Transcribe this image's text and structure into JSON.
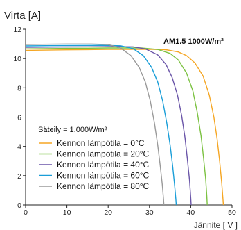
{
  "chart_data": {
    "type": "line",
    "ylabel": "Virta [A]",
    "xlabel": "Jännite [ V ]",
    "xlim": [
      0,
      50
    ],
    "ylim": [
      0,
      12
    ],
    "xticks": [
      0,
      10,
      20,
      30,
      40,
      50
    ],
    "yticks": [
      0,
      2,
      4,
      6,
      8,
      10,
      12
    ],
    "grid": false,
    "condition_note": "AM1.5  1000W/m²",
    "irradiance_note": "Säteily = 1,000W/m²",
    "legend_position": "lower-left",
    "series": [
      {
        "name": "Kennon lämpötila = 0°C",
        "color": "#f5a623",
        "points": [
          [
            0,
            10.56
          ],
          [
            10,
            10.59
          ],
          [
            20,
            10.62
          ],
          [
            30,
            10.63
          ],
          [
            34,
            10.6
          ],
          [
            37,
            10.45
          ],
          [
            39,
            10.2
          ],
          [
            41,
            9.7
          ],
          [
            43,
            8.8
          ],
          [
            44.5,
            7.5
          ],
          [
            45.6,
            6.0
          ],
          [
            46.4,
            4.5
          ],
          [
            47.0,
            3.0
          ],
          [
            47.5,
            1.5
          ],
          [
            47.8,
            0.4
          ],
          [
            47.9,
            0
          ]
        ]
      },
      {
        "name": "Kennon lämpötila = 20°C",
        "color": "#7cc242",
        "points": [
          [
            0,
            10.66
          ],
          [
            10,
            10.69
          ],
          [
            20,
            10.72
          ],
          [
            28,
            10.72
          ],
          [
            32,
            10.62
          ],
          [
            35,
            10.35
          ],
          [
            37,
            9.9
          ],
          [
            39,
            9.0
          ],
          [
            40.5,
            7.8
          ],
          [
            41.6,
            6.3
          ],
          [
            42.5,
            4.7
          ],
          [
            43.1,
            3.2
          ],
          [
            43.6,
            1.8
          ],
          [
            43.9,
            0.6
          ],
          [
            44.0,
            0
          ]
        ]
      },
      {
        "name": "Kennon lämpötila = 40°C",
        "color": "#6a55a8",
        "points": [
          [
            0,
            10.76
          ],
          [
            10,
            10.79
          ],
          [
            20,
            10.81
          ],
          [
            26,
            10.8
          ],
          [
            29,
            10.66
          ],
          [
            32,
            10.25
          ],
          [
            34,
            9.6
          ],
          [
            35.5,
            8.7
          ],
          [
            36.8,
            7.5
          ],
          [
            37.8,
            6.1
          ],
          [
            38.6,
            4.6
          ],
          [
            39.2,
            3.1
          ],
          [
            39.7,
            1.7
          ],
          [
            40.0,
            0.5
          ],
          [
            40.1,
            0
          ]
        ]
      },
      {
        "name": "Kennon lämpötila = 60°C",
        "color": "#1a9ed8",
        "points": [
          [
            0,
            10.86
          ],
          [
            10,
            10.89
          ],
          [
            18,
            10.9
          ],
          [
            23,
            10.87
          ],
          [
            26,
            10.68
          ],
          [
            28.5,
            10.2
          ],
          [
            30.5,
            9.4
          ],
          [
            32,
            8.4
          ],
          [
            33.2,
            7.1
          ],
          [
            34.2,
            5.6
          ],
          [
            35,
            4.1
          ],
          [
            35.6,
            2.7
          ],
          [
            36.1,
            1.3
          ],
          [
            36.4,
            0.4
          ],
          [
            36.5,
            0
          ]
        ]
      },
      {
        "name": "Kennon lämpötila = 80°C",
        "color": "#9a9a9a",
        "points": [
          [
            0,
            10.96
          ],
          [
            10,
            10.99
          ],
          [
            16,
            10.99
          ],
          [
            20,
            10.95
          ],
          [
            23,
            10.72
          ],
          [
            25.5,
            10.2
          ],
          [
            27.5,
            9.4
          ],
          [
            29,
            8.4
          ],
          [
            30.2,
            7.1
          ],
          [
            31.2,
            5.6
          ],
          [
            32,
            4.1
          ],
          [
            32.6,
            2.7
          ],
          [
            33.1,
            1.4
          ],
          [
            33.4,
            0.4
          ],
          [
            33.5,
            0
          ]
        ]
      }
    ]
  }
}
